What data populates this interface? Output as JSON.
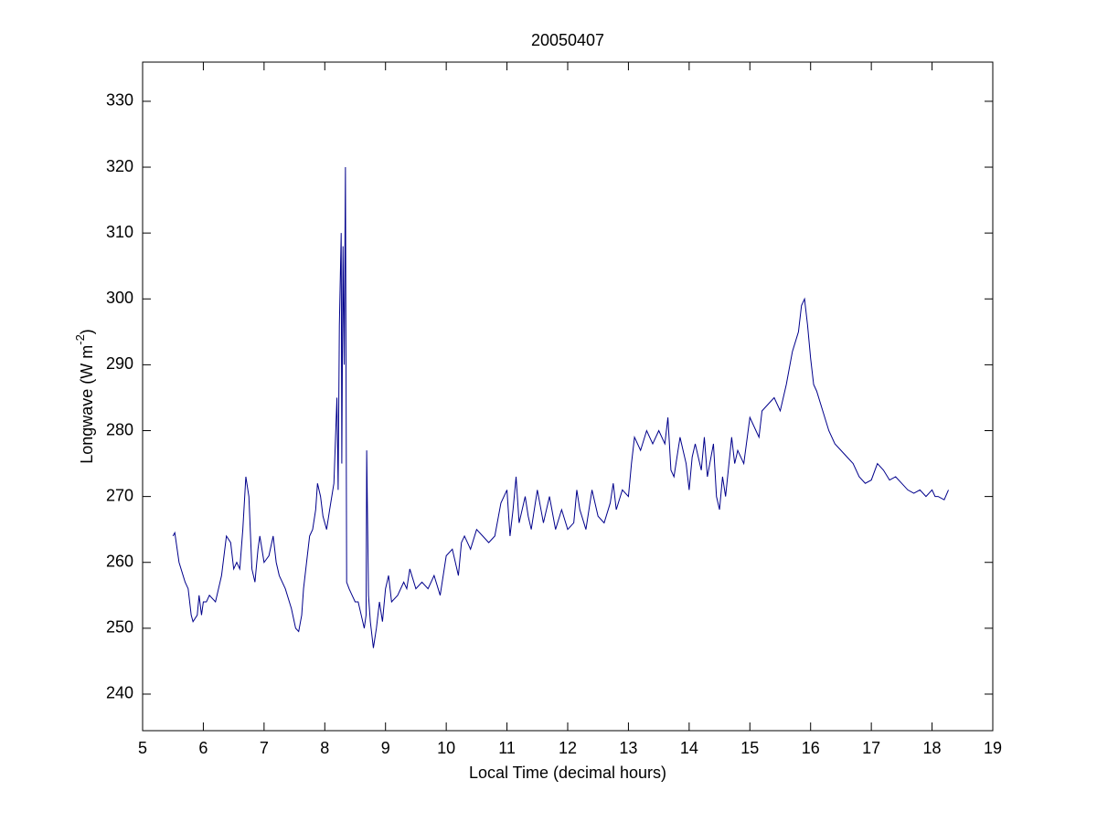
{
  "chart_data": {
    "type": "line",
    "title": "20050407",
    "xlabel": "Local Time (decimal hours)",
    "ylabel": [
      "Longwave (W m",
      "-2",
      ")"
    ],
    "xlim": [
      5,
      19
    ],
    "xticks": [
      5,
      6,
      7,
      8,
      9,
      10,
      11,
      12,
      13,
      14,
      15,
      16,
      17,
      18,
      19
    ],
    "ylim": [
      234.45,
      335.95
    ],
    "yticks": [
      240,
      250,
      260,
      270,
      280,
      290,
      300,
      310,
      320,
      330
    ],
    "grid": false,
    "series": [
      {
        "color": "#00008b",
        "x": [
          5.5,
          5.53,
          5.6,
          5.7,
          5.75,
          5.8,
          5.83,
          5.9,
          5.93,
          5.97,
          6.0,
          6.05,
          6.1,
          6.2,
          6.3,
          6.38,
          6.45,
          6.5,
          6.55,
          6.6,
          6.65,
          6.7,
          6.75,
          6.8,
          6.85,
          6.9,
          6.93,
          7.0,
          7.08,
          7.15,
          7.2,
          7.25,
          7.35,
          7.45,
          7.52,
          7.57,
          7.62,
          7.65,
          7.7,
          7.75,
          7.8,
          7.85,
          7.88,
          7.93,
          7.97,
          8.03,
          8.08,
          8.15,
          8.2,
          8.22,
          8.24,
          8.27,
          8.28,
          8.3,
          8.32,
          8.34,
          8.36,
          8.4,
          8.45,
          8.5,
          8.55,
          8.6,
          8.65,
          8.68,
          8.69,
          8.72,
          8.75,
          8.8,
          8.85,
          8.9,
          8.95,
          9.0,
          9.05,
          9.1,
          9.2,
          9.3,
          9.35,
          9.4,
          9.5,
          9.6,
          9.7,
          9.8,
          9.9,
          10.0,
          10.1,
          10.2,
          10.25,
          10.3,
          10.4,
          10.5,
          10.6,
          10.7,
          10.8,
          10.9,
          11.0,
          11.05,
          11.1,
          11.15,
          11.2,
          11.3,
          11.35,
          11.4,
          11.5,
          11.6,
          11.7,
          11.8,
          11.9,
          12.0,
          12.1,
          12.15,
          12.2,
          12.3,
          12.4,
          12.5,
          12.6,
          12.7,
          12.75,
          12.8,
          12.9,
          13.0,
          13.05,
          13.1,
          13.2,
          13.3,
          13.4,
          13.5,
          13.6,
          13.65,
          13.7,
          13.75,
          13.85,
          13.95,
          14.0,
          14.05,
          14.1,
          14.2,
          14.25,
          14.3,
          14.4,
          14.45,
          14.5,
          14.55,
          14.6,
          14.7,
          14.75,
          14.8,
          14.9,
          15.0,
          15.1,
          15.15,
          15.2,
          15.3,
          15.4,
          15.5,
          15.6,
          15.7,
          15.8,
          15.85,
          15.9,
          15.95,
          16.0,
          16.05,
          16.1,
          16.2,
          16.3,
          16.4,
          16.5,
          16.6,
          16.7,
          16.8,
          16.9,
          17.0,
          17.1,
          17.2,
          17.3,
          17.4,
          17.5,
          17.6,
          17.7,
          17.8,
          17.9,
          18.0,
          18.05,
          18.1,
          18.2,
          18.27
        ],
        "values": [
          264,
          264.5,
          260,
          257,
          256,
          252,
          251,
          252,
          255,
          252,
          254,
          254,
          255,
          254,
          258,
          264,
          263,
          259,
          260,
          259,
          265,
          273,
          270,
          259,
          257,
          262,
          264,
          260,
          261,
          264,
          260,
          258,
          256,
          253,
          250,
          249.5,
          252,
          256,
          260,
          264,
          265,
          268,
          272,
          270,
          267,
          265,
          268,
          272,
          285,
          271,
          296,
          310,
          275,
          308,
          290,
          320,
          257,
          256,
          255,
          254,
          254,
          252,
          250,
          252,
          277,
          255,
          251,
          247,
          250,
          254,
          251,
          256,
          258,
          254,
          255,
          257,
          256,
          259,
          256,
          257,
          256,
          258,
          255,
          261,
          262,
          258,
          263,
          264,
          262,
          265,
          264,
          263,
          264,
          269,
          271,
          264,
          268,
          273,
          266,
          270,
          267,
          265,
          271,
          266,
          270,
          265,
          268,
          265,
          266,
          271,
          268,
          265,
          271,
          267,
          266,
          269,
          272,
          268,
          271,
          270,
          275,
          279,
          277,
          280,
          278,
          280,
          278,
          282,
          274,
          273,
          279,
          275,
          271,
          276,
          278,
          274,
          279,
          273,
          278,
          270,
          268,
          273,
          270,
          279,
          275,
          277,
          275,
          282,
          280,
          279,
          283,
          284,
          285,
          283,
          287,
          292,
          295,
          299,
          300,
          296,
          291,
          287,
          286,
          283,
          280,
          278,
          277,
          276,
          275,
          273,
          272,
          272.5,
          275,
          274,
          272.5,
          273,
          272,
          271,
          270.5,
          271,
          270,
          271,
          270,
          270,
          269.5,
          271
        ]
      }
    ]
  }
}
